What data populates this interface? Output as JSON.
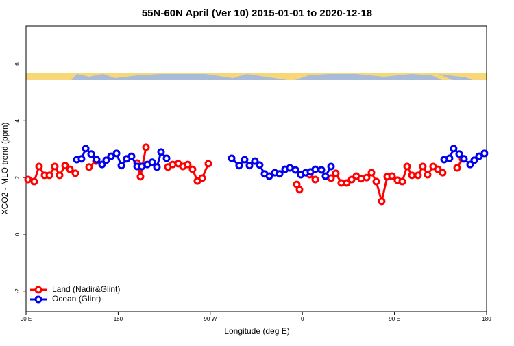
{
  "chart_data": {
    "type": "line",
    "title": "55N-60N April (Ver 10)   2015-01-01 to 2020-12-18",
    "x_label": "Longitude (deg E)",
    "y_label": "XCO2 - MLO trend (ppm)",
    "xlim": [
      90,
      540
    ],
    "ylim": [
      -2.73,
      7.34
    ],
    "xticks": [
      {
        "value": 90,
        "label": "90 E"
      },
      180,
      {
        "value": 270,
        "label": "90 W"
      },
      {
        "value": 360,
        "label": "0"
      },
      {
        "value": 450,
        "label": "90 E"
      },
      {
        "value": 540,
        "label": "180"
      }
    ],
    "yticks": [
      -2,
      0,
      2,
      4,
      6
    ],
    "legend": "bottom-left",
    "series": [
      {
        "name": "Land (Nadir&Glint)",
        "color": "#ff0000",
        "x": [
          92.0,
          98.0,
          102.7,
          108.1,
          112.8,
          118.1,
          122.8,
          128.2,
          132.9,
          138.2,
          null,
          151.6,
          158.3,
          null,
          198.5,
          201.8,
          207.2,
          null,
          228.6,
          233.3,
          238.7,
          243.3,
          248.0,
          252.7,
          257.4,
          262.1,
          268.1,
          null,
          354.5,
          357.2,
          null,
          367.2,
          372.6,
          null,
          388.0,
          392.7,
          398.0,
          403.4,
          408.1,
          412.7,
          417.4,
          422.8,
          427.5,
          432.2,
          437.5,
          442.9,
          447.6,
          452.9,
          457.6,
          462.3,
          467.0,
          473.0,
          477.7,
          482.4,
          487.7,
          492.4,
          497.1,
          null,
          511.2,
          516.5
        ],
        "values": [
          1.93,
          1.86,
          2.39,
          2.08,
          2.08,
          2.39,
          2.08,
          2.42,
          2.29,
          2.15,
          null,
          2.37,
          2.58,
          null,
          2.51,
          2.03,
          3.07,
          null,
          2.37,
          2.46,
          2.49,
          2.39,
          2.46,
          2.29,
          1.88,
          1.98,
          2.49,
          null,
          1.76,
          1.57,
          null,
          2.1,
          1.93,
          null,
          1.98,
          2.15,
          1.81,
          1.81,
          1.93,
          2.05,
          1.96,
          2.0,
          2.17,
          1.86,
          1.16,
          2.03,
          2.05,
          1.91,
          1.86,
          2.39,
          2.08,
          2.08,
          2.39,
          2.1,
          2.39,
          2.29,
          2.17,
          null,
          2.34,
          2.66
        ]
      },
      {
        "name": "Ocean (Glint)",
        "color": "#0000ee",
        "x": [
          139.6,
          144.2,
          148.3,
          153.6,
          159.0,
          164.3,
          168.3,
          173.0,
          178.4,
          183.1,
          188.4,
          193.1,
          198.5,
          203.2,
          208.5,
          213.2,
          217.9,
          221.9,
          227.3,
          null,
          290.9,
          298.2,
          303.6,
          308.3,
          313.6,
          318.3,
          323.0,
          327.7,
          333.1,
          337.8,
          343.1,
          347.8,
          353.2,
          358.5,
          363.2,
          367.9,
          372.6,
          378.6,
          382.6,
          388.0,
          null,
          498.5,
          503.8,
          507.8,
          513.2,
          517.9,
          523.9,
          527.9,
          532.6,
          537.9
        ],
        "values": [
          2.63,
          2.66,
          3.02,
          2.83,
          2.63,
          2.46,
          2.61,
          2.75,
          2.85,
          2.42,
          2.66,
          2.75,
          2.39,
          2.39,
          2.46,
          2.54,
          2.37,
          2.9,
          2.68,
          null,
          2.68,
          2.42,
          2.63,
          2.42,
          2.58,
          2.44,
          2.13,
          2.05,
          2.17,
          2.13,
          2.29,
          2.34,
          2.27,
          2.1,
          2.17,
          2.2,
          2.29,
          2.27,
          2.05,
          2.39,
          null,
          2.63,
          2.68,
          3.02,
          2.83,
          2.66,
          2.46,
          2.61,
          2.75,
          2.85
        ]
      }
    ]
  }
}
